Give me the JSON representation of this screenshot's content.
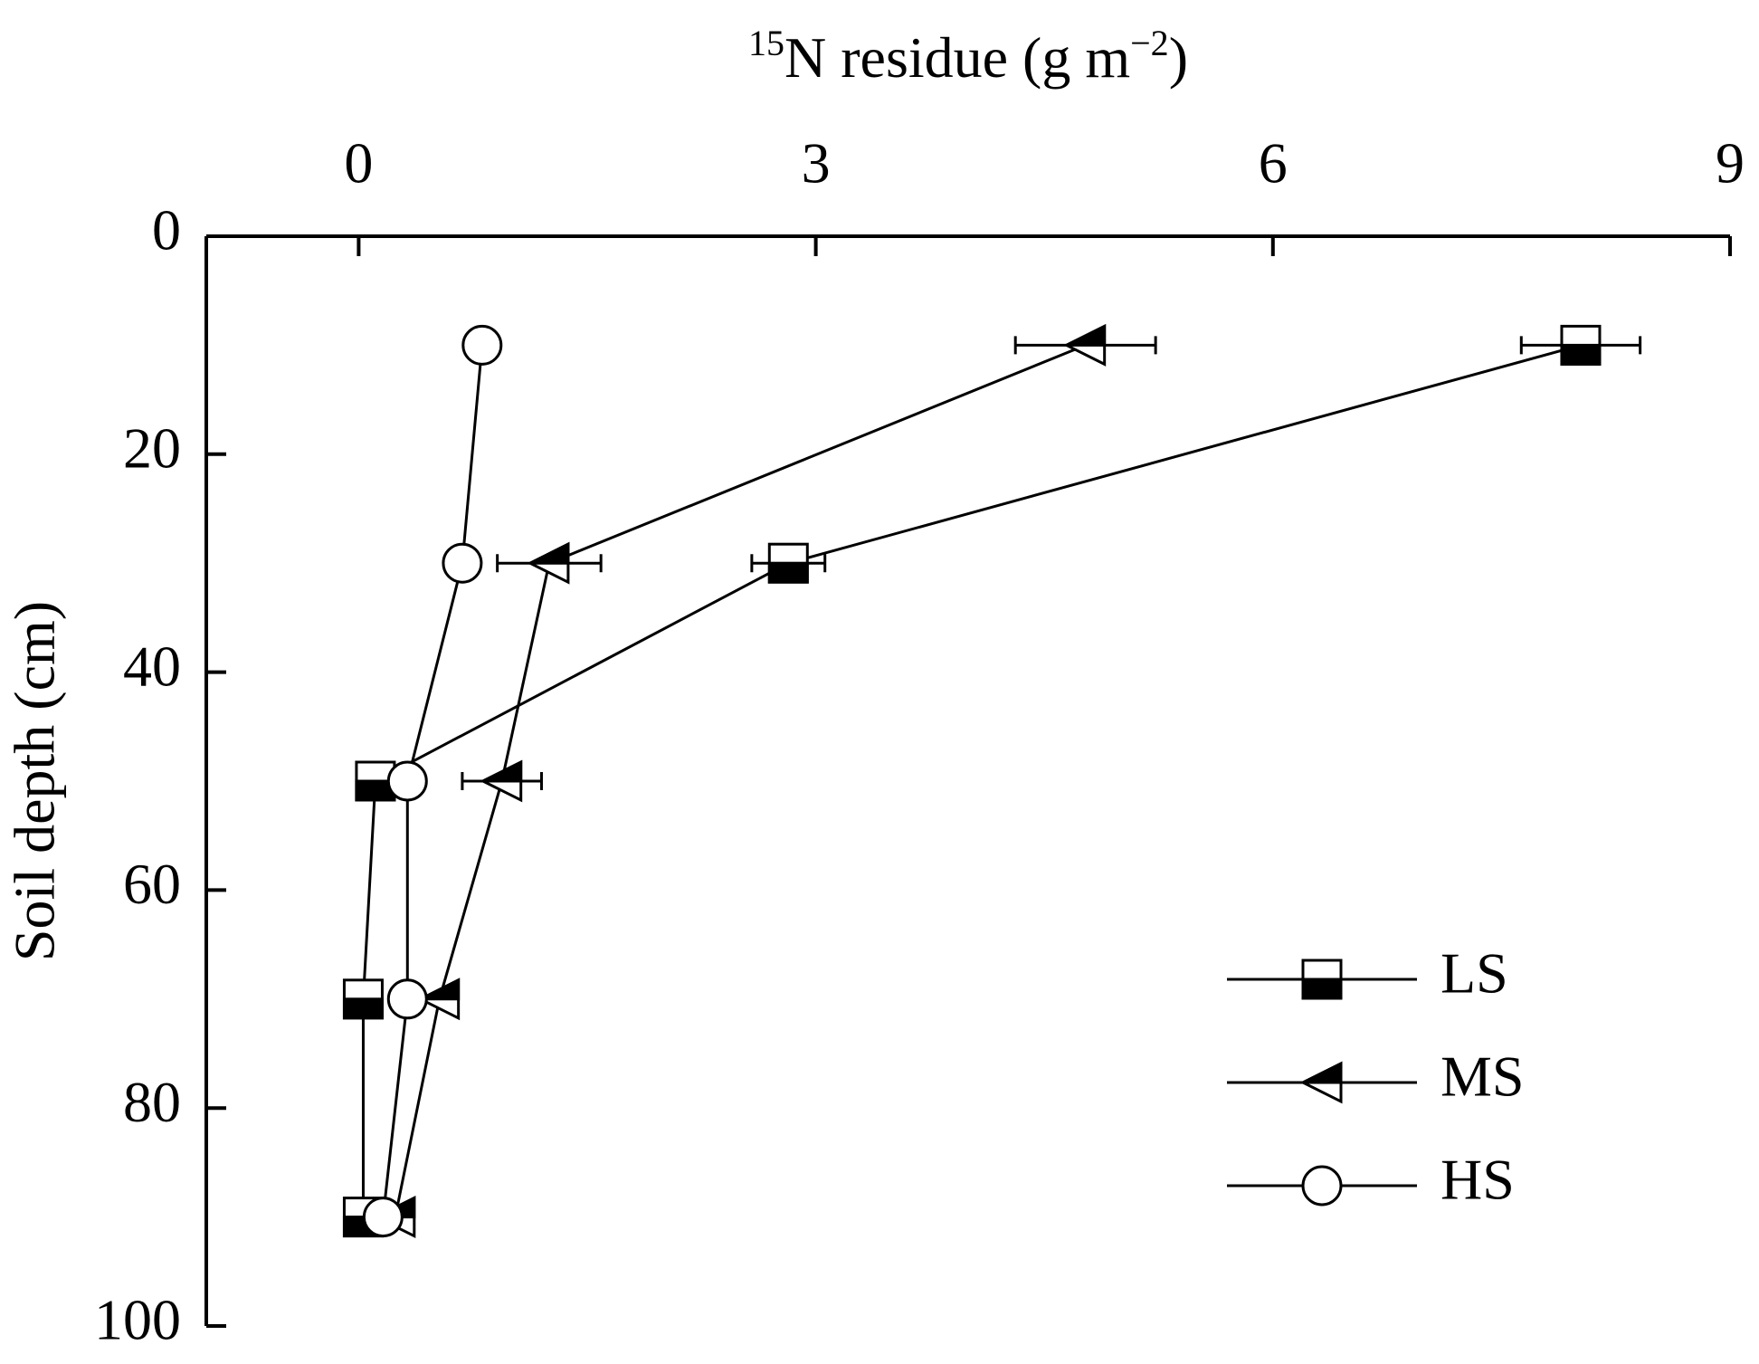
{
  "chart_data": {
    "type": "line",
    "xlabel": [
      "15",
      "N residue (g m",
      "−2",
      ")"
    ],
    "ylabel": "Soil depth (cm)",
    "y": [
      10,
      30,
      50,
      70,
      90
    ],
    "xlim": [
      -1,
      9
    ],
    "xticks": [
      0,
      3,
      6,
      9
    ],
    "ylim": [
      0,
      100
    ],
    "yticks": [
      0,
      20,
      40,
      60,
      80,
      100
    ],
    "x_axis_position": "top",
    "y_inverted": true,
    "grid": false,
    "legend": "lower right",
    "series": [
      {
        "name": "LS",
        "color": "#000000",
        "marker": "square",
        "values": [
          8.02,
          2.82,
          0.11,
          0.03,
          0.03
        ],
        "errors": [
          0.39,
          0.24,
          0.05,
          0.03,
          0.03
        ]
      },
      {
        "name": "MS",
        "color": "#000000",
        "marker": "triangle-left",
        "values": [
          4.77,
          1.25,
          0.94,
          0.53,
          0.24
        ],
        "errors": [
          0.46,
          0.34,
          0.26,
          0.1,
          0.05
        ]
      },
      {
        "name": "HS",
        "color": "#000000",
        "marker": "circle",
        "values": [
          0.81,
          0.68,
          0.32,
          0.32,
          0.16
        ],
        "errors": [
          0.05,
          0.06,
          0.04,
          0.03,
          0.03
        ]
      }
    ]
  }
}
